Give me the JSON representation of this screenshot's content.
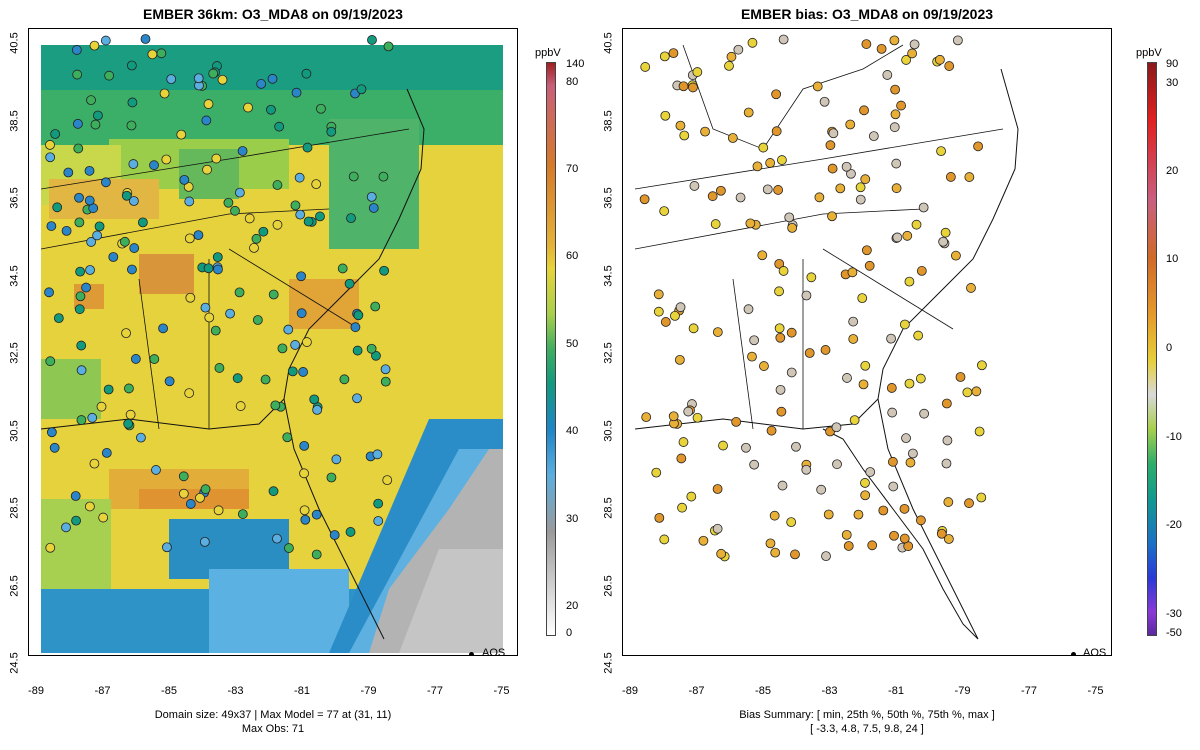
{
  "left_panel": {
    "title": "EMBER 36km: O3_MDA8 on 09/19/2023",
    "footer_line1": "Domain size: 49x37 | Max Model = 77 at (31, 11)",
    "footer_line2": "Max Obs: 71",
    "legend": "AQS",
    "colorbar": {
      "unit": "ppbV",
      "labels": [
        "140",
        "80",
        "70",
        "60",
        "50",
        "40",
        "30",
        "20",
        "0"
      ]
    }
  },
  "right_panel": {
    "title": "EMBER bias: O3_MDA8 on 09/19/2023",
    "footer_line1": "Bias Summary: [ min, 25th %, 50th %, 75th %, max ]",
    "footer_line2": "[ -3.3,   4.8,   7.5,   9.8,   24 ]",
    "legend": "AQS",
    "colorbar": {
      "unit": "ppbV",
      "labels": [
        "90",
        "30",
        "20",
        "10",
        "0",
        "-10",
        "-20",
        "-30",
        "-50"
      ]
    }
  },
  "axes": {
    "x_ticks": [
      "-89",
      "-87",
      "-85",
      "-83",
      "-81",
      "-79",
      "-77",
      "-75"
    ],
    "y_ticks": [
      "40.5",
      "38.5",
      "36.5",
      "34.5",
      "32.5",
      "30.5",
      "28.5",
      "26.5",
      "24.5"
    ]
  },
  "colors": {
    "green": "#3cae5c",
    "teal": "#129a7e",
    "yellow": "#e8d43a",
    "orange": "#e0962a",
    "blue": "#2a86c8",
    "lightblue": "#5aaee0",
    "gray": "#b8b8b8"
  }
}
